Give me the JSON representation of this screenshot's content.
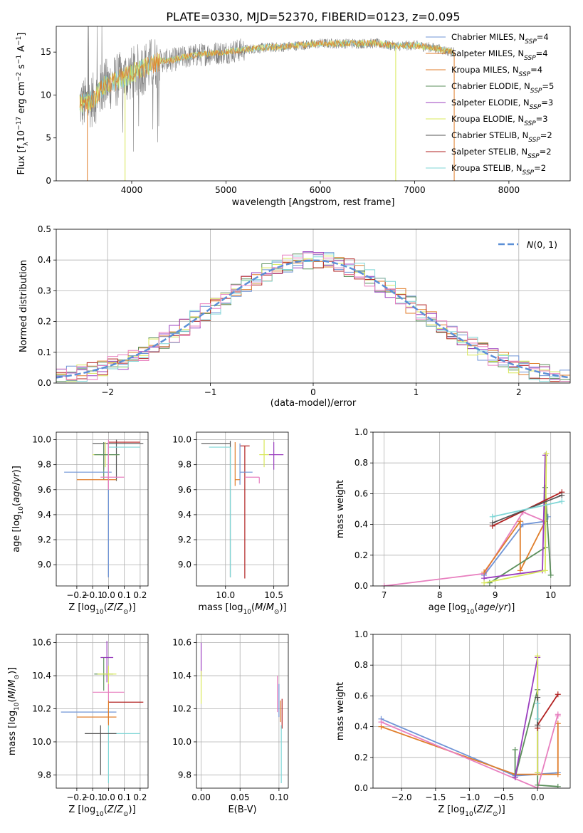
{
  "figure_title": "PLATE=0330, MJD=52370, FIBERID=0123, z=0.095",
  "colors": {
    "Chabrier MILES": "#6f94d6",
    "Salpeter MILES": "#e07e2b",
    "Kroupa MILES": "#e07e2b",
    "Chabrier ELODIE": "#5b8f5b",
    "Salpeter ELODIE": "#9b3fbf",
    "Kroupa ELODIE": "#d8e85a",
    "Chabrier STELIB": "#555555",
    "Salpeter STELIB": "#b22222",
    "Kroupa STELIB": "#7fd6d6",
    "Pink": "#e87fbf"
  },
  "chart_data": [
    {
      "id": "spectrum",
      "type": "line",
      "title": "PLATE=0330, MJD=52370, FIBERID=0123, z=0.095",
      "xlabel": "wavelength [Angstrom, rest frame]",
      "ylabel": "Flux [f_λ10^{-17} erg cm^{-2} s^{-1} A^{-1}]",
      "xlim": [
        3200,
        8650
      ],
      "ylim": [
        0,
        18
      ],
      "xticks": [
        4000,
        5000,
        6000,
        7000,
        8000
      ],
      "yticks": [
        0,
        5,
        10,
        15
      ],
      "grid": false,
      "legend_position": "upper-right",
      "x": [
        3500,
        3600,
        3700,
        3800,
        3900,
        4000,
        4100,
        4200,
        4300,
        4400,
        4600,
        4800,
        5000,
        5200,
        5400,
        5600,
        5800,
        6000,
        6200,
        6400,
        6600,
        6800,
        7000,
        7200,
        7400
      ],
      "observed_y": [
        9.0,
        9.5,
        11.0,
        11.5,
        12.0,
        12.5,
        13.0,
        13.5,
        14.0,
        14.0,
        14.5,
        14.8,
        15.0,
        15.3,
        15.5,
        15.6,
        15.8,
        16.0,
        16.0,
        16.0,
        16.0,
        15.7,
        15.8,
        15.5,
        15.0
      ],
      "series": [
        {
          "name": "Chabrier MILES, N_SSP=4",
          "legend_main": "Chabrier MILES, N",
          "legend_tail": "=4"
        },
        {
          "name": "Salpeter MILES, N_SSP=4",
          "legend_main": "Salpeter MILES, N",
          "legend_tail": "=4"
        },
        {
          "name": "Kroupa MILES, N_SSP=4",
          "legend_main": "Kroupa MILES, N",
          "legend_tail": "=4"
        },
        {
          "name": "Chabrier ELODIE, N_SSP=5",
          "legend_main": "Chabrier ELODIE, N",
          "legend_tail": "=5"
        },
        {
          "name": "Salpeter ELODIE, N_SSP=3",
          "legend_main": "Salpeter ELODIE, N",
          "legend_tail": "=3"
        },
        {
          "name": "Kroupa ELODIE, N_SSP=3",
          "legend_main": "Kroupa ELODIE, N",
          "legend_tail": "=3"
        },
        {
          "name": "Chabrier STELIB, N_SSP=2",
          "legend_main": "Chabrier STELIB, N",
          "legend_tail": "=2"
        },
        {
          "name": "Salpeter STELIB, N_SSP=2",
          "legend_main": "Salpeter STELIB, N",
          "legend_tail": "=2"
        },
        {
          "name": "Kroupa STELIB, N_SSP=2",
          "legend_main": "Kroupa STELIB, N",
          "legend_tail": "=2"
        }
      ],
      "legend_subscript": "SSP"
    },
    {
      "id": "residuals",
      "type": "histogram",
      "xlabel": "(data-model)/error",
      "ylabel": "Normed distribution",
      "xlim": [
        -2.5,
        2.5
      ],
      "ylim": [
        0,
        0.5
      ],
      "xticks": [
        -2,
        -1,
        0,
        1,
        2
      ],
      "yticks": [
        0.0,
        0.1,
        0.2,
        0.3,
        0.4,
        0.5
      ],
      "grid": true,
      "legend_position": "upper-right",
      "reference_curve": "N(0,1)",
      "legend_label": "N(0, 1)",
      "bin_width": 0.1,
      "bins_start": -2.5
    },
    {
      "id": "age_vs_Z",
      "type": "errorbar",
      "xlabel": "Z [log10(Z/Z☉)]",
      "ylabel": "age  [log10(age/yr)]",
      "xlim": [
        -0.33,
        0.25
      ],
      "ylim": [
        8.83,
        10.06
      ],
      "xticks": [
        -0.2,
        -0.1,
        0.0,
        0.1,
        0.2
      ],
      "yticks": [
        9.0,
        9.2,
        9.4,
        9.6,
        9.8,
        10.0
      ],
      "grid": true,
      "points": [
        {
          "color": "#555555",
          "x": 0.05,
          "y": 9.97,
          "xerr": [
            0.15,
            0.17
          ],
          "yerr": [
            0.3,
            0.03
          ]
        },
        {
          "color": "#b22222",
          "x": 0.0,
          "y": 9.98,
          "xerr": [
            0.0,
            0.2
          ],
          "yerr": [
            1.08,
            0.0
          ]
        },
        {
          "color": "#7fd6d6",
          "x": 0.0,
          "y": 9.94,
          "xerr": [
            0.0,
            0.2
          ],
          "yerr": [
            1.04,
            0.0
          ]
        },
        {
          "color": "#d8e85a",
          "x": -0.02,
          "y": 9.88,
          "xerr": [
            0.08,
            0.08
          ],
          "yerr": [
            0.1,
            0.1
          ]
        },
        {
          "color": "#9b3fbf",
          "x": -0.03,
          "y": 9.88,
          "xerr": [
            0.02,
            0.02
          ],
          "yerr": [
            0.12,
            0.1
          ]
        },
        {
          "color": "#5b8f5b",
          "x": -0.03,
          "y": 9.88,
          "xerr": [
            0.06,
            0.1
          ],
          "yerr": [
            0.2,
            0.1
          ]
        },
        {
          "color": "#6f94d6",
          "x": 0.0,
          "y": 9.74,
          "xerr": [
            0.28,
            0.02
          ],
          "yerr": [
            0.84,
            0.23
          ]
        },
        {
          "color": "#e07e2b",
          "x": 0.0,
          "y": 9.68,
          "xerr": [
            0.2,
            0.05
          ],
          "yerr": [
            0.06,
            0.02
          ]
        },
        {
          "color": "#e87fbf",
          "x": 0.0,
          "y": 9.7,
          "xerr": [
            0.05,
            0.1
          ],
          "yerr": [
            0.1,
            0.3
          ]
        }
      ]
    },
    {
      "id": "age_vs_mass",
      "type": "errorbar",
      "xlabel": "mass [log10(M/M☉)]",
      "ylabel": "",
      "xlim": [
        9.7,
        10.65
      ],
      "ylim": [
        8.83,
        10.06
      ],
      "xticks": [
        10.0,
        10.5
      ],
      "yticks": [
        9.0,
        9.2,
        9.4,
        9.6,
        9.8,
        10.0
      ],
      "grid": true,
      "points": [
        {
          "color": "#555555",
          "x": 10.05,
          "y": 9.97,
          "xerr": [
            0.3,
            0.0
          ],
          "yerr": [
            1.07,
            0.02
          ]
        },
        {
          "color": "#7fd6d6",
          "x": 10.05,
          "y": 9.94,
          "xerr": [
            0.22,
            0.0
          ],
          "yerr": [
            1.04,
            0.0
          ]
        },
        {
          "color": "#b22222",
          "x": 10.2,
          "y": 9.95,
          "xerr": [
            0.05,
            0.05
          ],
          "yerr": [
            1.06,
            0.0
          ]
        },
        {
          "color": "#9b3fbf",
          "x": 10.5,
          "y": 9.88,
          "xerr": [
            0.05,
            0.1
          ],
          "yerr": [
            0.12,
            0.1
          ]
        },
        {
          "color": "#d8e85a",
          "x": 10.4,
          "y": 9.88,
          "xerr": [
            0.05,
            0.05
          ],
          "yerr": [
            0.1,
            0.12
          ]
        },
        {
          "color": "#6f94d6",
          "x": 10.15,
          "y": 9.74,
          "xerr": [
            0.0,
            0.13
          ],
          "yerr": [
            0.1,
            0.23
          ]
        },
        {
          "color": "#e87fbf",
          "x": 10.35,
          "y": 9.7,
          "xerr": [
            0.15,
            0.0
          ],
          "yerr": [
            0.05,
            0.0
          ]
        },
        {
          "color": "#e07e2b",
          "x": 10.1,
          "y": 9.68,
          "xerr": [
            0.0,
            0.05
          ],
          "yerr": [
            0.05,
            0.3
          ]
        }
      ]
    },
    {
      "id": "weight_vs_age",
      "type": "line",
      "xlabel": "age  [log10(age/yr)]",
      "ylabel": "mass weight",
      "xlim": [
        6.8,
        10.35
      ],
      "ylim": [
        0.0,
        1.0
      ],
      "xticks": [
        7,
        8,
        9,
        10
      ],
      "yticks": [
        0.0,
        0.2,
        0.4,
        0.6,
        0.8,
        1.0
      ],
      "grid": true,
      "series": [
        {
          "color": "#e87fbf",
          "x": [
            7.0,
            8.8,
            9.5,
            9.9
          ],
          "y": [
            0.0,
            0.08,
            0.48,
            0.42
          ]
        },
        {
          "color": "#6f94d6",
          "x": [
            8.8,
            9.5,
            9.9,
            9.95
          ],
          "y": [
            0.07,
            0.4,
            0.42,
            0.45
          ]
        },
        {
          "color": "#e07e2b",
          "x": [
            8.8,
            9.45,
            9.45,
            9.9
          ],
          "y": [
            0.09,
            0.42,
            0.1,
            0.42
          ]
        },
        {
          "color": "#5b8f5b",
          "x": [
            8.9,
            9.9,
            9.9,
            10.0
          ],
          "y": [
            0.02,
            0.25,
            0.64,
            0.07
          ]
        },
        {
          "color": "#9b3fbf",
          "x": [
            8.8,
            9.85,
            9.9
          ],
          "y": [
            0.05,
            0.1,
            0.85
          ]
        },
        {
          "color": "#d8e85a",
          "x": [
            8.8,
            9.9,
            9.92
          ],
          "y": [
            0.02,
            0.1,
            0.86
          ]
        },
        {
          "color": "#b22222",
          "x": [
            8.95,
            10.2
          ],
          "y": [
            0.39,
            0.61
          ]
        },
        {
          "color": "#555555",
          "x": [
            8.95,
            10.2
          ],
          "y": [
            0.41,
            0.59
          ]
        },
        {
          "color": "#7fd6d6",
          "x": [
            8.95,
            10.2
          ],
          "y": [
            0.45,
            0.55
          ]
        }
      ]
    },
    {
      "id": "mass_vs_Z",
      "type": "errorbar",
      "xlabel": "Z [log10(Z/Z☉)]",
      "ylabel": "mass [log10(M/M☉)]",
      "xlim": [
        -0.33,
        0.25
      ],
      "ylim": [
        9.72,
        10.65
      ],
      "xticks": [
        -0.2,
        -0.1,
        0.0,
        0.1,
        0.2
      ],
      "yticks": [
        9.8,
        10.0,
        10.2,
        10.4,
        10.6
      ],
      "grid": true,
      "points": [
        {
          "color": "#9b3fbf",
          "x": -0.01,
          "y": 10.51,
          "xerr": [
            0.04,
            0.04
          ],
          "yerr": [
            0.15,
            0.1
          ]
        },
        {
          "color": "#5b8f5b",
          "x": -0.03,
          "y": 10.41,
          "xerr": [
            0.06,
            0.06
          ],
          "yerr": [
            0.1,
            0.1
          ]
        },
        {
          "color": "#d8e85a",
          "x": 0.0,
          "y": 10.41,
          "xerr": [
            0.07,
            0.05
          ],
          "yerr": [
            0.1,
            0.05
          ]
        },
        {
          "color": "#e87fbf",
          "x": 0.0,
          "y": 10.3,
          "xerr": [
            0.1,
            0.1
          ],
          "yerr": [
            0.05,
            0.05
          ]
        },
        {
          "color": "#b22222",
          "x": 0.05,
          "y": 10.24,
          "xerr": [
            0.05,
            0.17
          ],
          "yerr": [
            0.0,
            0.0
          ]
        },
        {
          "color": "#6f94d6",
          "x": 0.0,
          "y": 10.18,
          "xerr": [
            0.3,
            0.05
          ],
          "yerr": [
            0.07,
            0.02
          ]
        },
        {
          "color": "#e07e2b",
          "x": 0.0,
          "y": 10.15,
          "xerr": [
            0.2,
            0.05
          ],
          "yerr": [
            0.05,
            0.1
          ]
        },
        {
          "color": "#7fd6d6",
          "x": 0.0,
          "y": 10.05,
          "xerr": [
            0.0,
            0.2
          ],
          "yerr": [
            0.3,
            0.05
          ]
        },
        {
          "color": "#555555",
          "x": -0.05,
          "y": 10.05,
          "xerr": [
            0.1,
            0.1
          ],
          "yerr": [
            0.25,
            0.05
          ]
        }
      ]
    },
    {
      "id": "mass_vs_ebv",
      "type": "errorbar",
      "xlabel": "E(B-V)",
      "ylabel": "",
      "xlim": [
        -0.006,
        0.112
      ],
      "ylim": [
        9.72,
        10.65
      ],
      "xticks": [
        0.0,
        0.05,
        0.1
      ],
      "xticklabels": [
        "0.00",
        "0.05",
        "0.10"
      ],
      "yticks": [
        9.8,
        10.0,
        10.2,
        10.4,
        10.6
      ],
      "grid": true,
      "points": [
        {
          "color": "#9b3fbf",
          "x": 0.0,
          "y": 10.5,
          "xerr": [
            0.0,
            0.0
          ],
          "yerr": [
            0.1,
            0.1
          ]
        },
        {
          "color": "#d8e85a",
          "x": 0.0,
          "y": 10.38,
          "xerr": [
            0.0,
            0.0
          ],
          "yerr": [
            0.15,
            0.05
          ]
        },
        {
          "color": "#e87fbf",
          "x": 0.098,
          "y": 10.3,
          "xerr": [
            0.0,
            0.0
          ],
          "yerr": [
            0.12,
            0.1
          ]
        },
        {
          "color": "#6f94d6",
          "x": 0.1,
          "y": 10.25,
          "xerr": [
            0.0,
            0.0
          ],
          "yerr": [
            0.1,
            0.1
          ]
        },
        {
          "color": "#e07e2b",
          "x": 0.102,
          "y": 10.2,
          "xerr": [
            0.0,
            0.0
          ],
          "yerr": [
            0.08,
            0.05
          ]
        },
        {
          "color": "#b22222",
          "x": 0.104,
          "y": 10.18,
          "xerr": [
            0.0,
            0.0
          ],
          "yerr": [
            0.1,
            0.08
          ]
        },
        {
          "color": "#7fd6d6",
          "x": 0.103,
          "y": 10.05,
          "xerr": [
            0.0,
            0.0
          ],
          "yerr": [
            0.3,
            0.05
          ]
        }
      ]
    },
    {
      "id": "weight_vs_Z",
      "type": "line",
      "xlabel": "Z [log10(Z/Z☉)]",
      "ylabel": "mass weight",
      "xlim": [
        -2.42,
        0.48
      ],
      "ylim": [
        0.0,
        1.0
      ],
      "xticks": [
        -2.0,
        -1.5,
        -1.0,
        -0.5,
        0.0
      ],
      "yticks": [
        0.0,
        0.2,
        0.4,
        0.6,
        0.8,
        1.0
      ],
      "grid": true,
      "series": [
        {
          "color": "#6f94d6",
          "x": [
            -2.3,
            -0.33,
            0.0,
            0.3
          ],
          "y": [
            0.45,
            0.08,
            0.09,
            0.1
          ]
        },
        {
          "color": "#e07e2b",
          "x": [
            -2.3,
            -0.33,
            0.3,
            0.3
          ],
          "y": [
            0.4,
            0.09,
            0.09,
            0.42
          ]
        },
        {
          "color": "#e87fbf",
          "x": [
            -2.3,
            0.0,
            0.3,
            0.3
          ],
          "y": [
            0.43,
            0.0,
            0.48,
            0.47
          ]
        },
        {
          "color": "#5b8f5b",
          "x": [
            -0.33,
            -0.33,
            0.0,
            0.0,
            0.3
          ],
          "y": [
            0.25,
            0.07,
            0.64,
            0.02,
            0.01
          ]
        },
        {
          "color": "#9b3fbf",
          "x": [
            -0.33,
            0.0,
            0.0
          ],
          "y": [
            0.07,
            0.85,
            0.1
          ]
        },
        {
          "color": "#d8e85a",
          "x": [
            0.0,
            0.0
          ],
          "y": [
            0.86,
            0.1
          ]
        },
        {
          "color": "#b22222",
          "x": [
            0.0,
            0.0,
            0.3
          ],
          "y": [
            0.39,
            0.41,
            0.61
          ]
        },
        {
          "color": "#555555",
          "x": [
            0.0,
            0.0
          ],
          "y": [
            0.41,
            0.59
          ]
        },
        {
          "color": "#7fd6d6",
          "x": [
            0.0,
            0.0
          ],
          "y": [
            0.45,
            0.55
          ]
        }
      ]
    }
  ]
}
